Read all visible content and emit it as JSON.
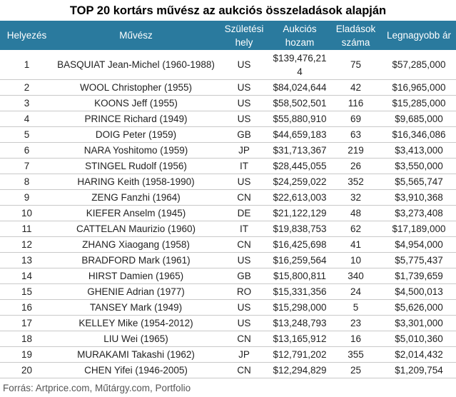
{
  "title": "TOP 20 kortárs művész az aukciós összeladások alapján",
  "headers": {
    "rank": "Helyezés",
    "artist": "Művész",
    "birthplace": "Születési hely",
    "revenue": "Aukciós hozam",
    "sales": "Eladások száma",
    "top": "Legnagyobb ár"
  },
  "rows": [
    {
      "rank": "1",
      "artist": "BASQUIAT Jean-Michel (1960-1988)",
      "birthplace": "US",
      "revenue": "$139,476,214",
      "sales": "75",
      "top": "$57,285,000"
    },
    {
      "rank": "2",
      "artist": "WOOL Christopher (1955)",
      "birthplace": "US",
      "revenue": "$84,024,644",
      "sales": "42",
      "top": "$16,965,000"
    },
    {
      "rank": "3",
      "artist": "KOONS Jeff (1955)",
      "birthplace": "US",
      "revenue": "$58,502,501",
      "sales": "116",
      "top": "$15,285,000"
    },
    {
      "rank": "4",
      "artist": "PRINCE Richard (1949)",
      "birthplace": "US",
      "revenue": "$55,880,910",
      "sales": "69",
      "top": "$9,685,000"
    },
    {
      "rank": "5",
      "artist": "DOIG Peter (1959)",
      "birthplace": "GB",
      "revenue": "$44,659,183",
      "sales": "63",
      "top": "$16,346,086"
    },
    {
      "rank": "6",
      "artist": "NARA Yoshitomo (1959)",
      "birthplace": "JP",
      "revenue": "$31,713,367",
      "sales": "219",
      "top": "$3,413,000"
    },
    {
      "rank": "7",
      "artist": "STINGEL Rudolf (1956)",
      "birthplace": "IT",
      "revenue": "$28,445,055",
      "sales": "26",
      "top": "$3,550,000"
    },
    {
      "rank": "8",
      "artist": "HARING Keith (1958-1990)",
      "birthplace": "US",
      "revenue": "$24,259,022",
      "sales": "352",
      "top": "$5,565,747"
    },
    {
      "rank": "9",
      "artist": "ZENG Fanzhi (1964)",
      "birthplace": "CN",
      "revenue": "$22,613,003",
      "sales": "32",
      "top": "$3,910,368"
    },
    {
      "rank": "10",
      "artist": "KIEFER Anselm (1945)",
      "birthplace": "DE",
      "revenue": "$21,122,129",
      "sales": "48",
      "top": "$3,273,408"
    },
    {
      "rank": "11",
      "artist": "CATTELAN Maurizio (1960)",
      "birthplace": "IT",
      "revenue": "$19,838,753",
      "sales": "62",
      "top": "$17,189,000"
    },
    {
      "rank": "12",
      "artist": "ZHANG Xiaogang (1958)",
      "birthplace": "CN",
      "revenue": "$16,425,698",
      "sales": "41",
      "top": "$4,954,000"
    },
    {
      "rank": "13",
      "artist": "BRADFORD Mark (1961)",
      "birthplace": "US",
      "revenue": "$16,259,564",
      "sales": "10",
      "top": "$5,775,437"
    },
    {
      "rank": "14",
      "artist": "HIRST Damien (1965)",
      "birthplace": "GB",
      "revenue": "$15,800,811",
      "sales": "340",
      "top": "$1,739,659"
    },
    {
      "rank": "15",
      "artist": "GHENIE Adrian (1977)",
      "birthplace": "RO",
      "revenue": "$15,331,356",
      "sales": "24",
      "top": "$4,500,013"
    },
    {
      "rank": "16",
      "artist": "TANSEY Mark (1949)",
      "birthplace": "US",
      "revenue": "$15,298,000",
      "sales": "5",
      "top": "$5,626,000"
    },
    {
      "rank": "17",
      "artist": "KELLEY Mike (1954-2012)",
      "birthplace": "US",
      "revenue": "$13,248,793",
      "sales": "23",
      "top": "$3,301,000"
    },
    {
      "rank": "18",
      "artist": "LIU Wei (1965)",
      "birthplace": "CN",
      "revenue": "$13,165,912",
      "sales": "16",
      "top": "$5,010,360"
    },
    {
      "rank": "19",
      "artist": "MURAKAMI Takashi (1962)",
      "birthplace": "JP",
      "revenue": "$12,791,202",
      "sales": "355",
      "top": "$2,014,432"
    },
    {
      "rank": "20",
      "artist": "CHEN Yifei (1946-2005)",
      "birthplace": "CN",
      "revenue": "$12,294,829",
      "sales": "25",
      "top": "$1,209,754"
    }
  ],
  "source": "Forrás: Artprice.com, Műtárgy.com, Portfolio",
  "colors": {
    "header_bg": "#2a7a9e",
    "header_text": "#ffffff",
    "row_border": "#c9c9c9"
  }
}
